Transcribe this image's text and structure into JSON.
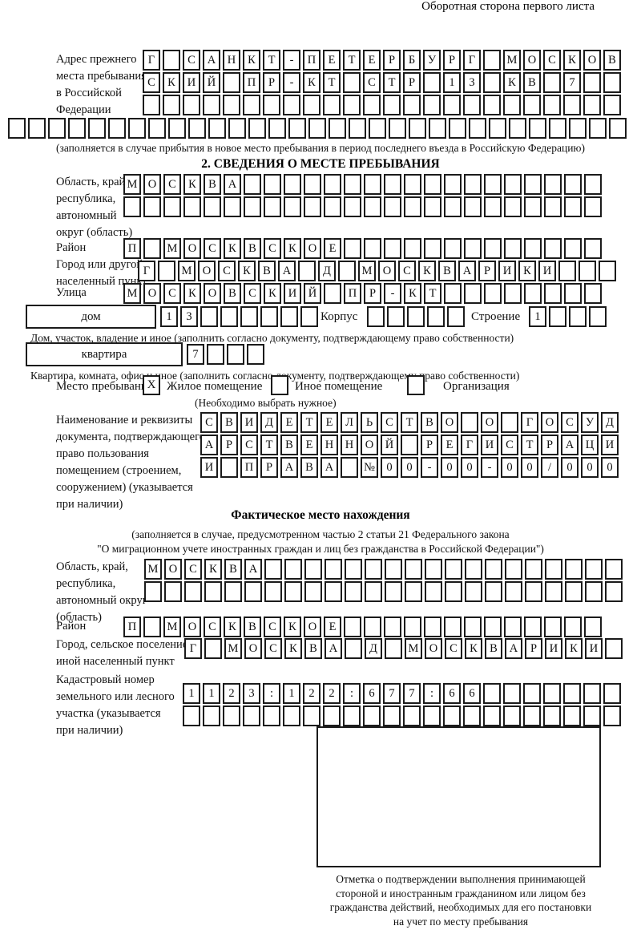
{
  "header": {
    "note": "Оборотная сторона первого листа"
  },
  "prev_address": {
    "label": "Адрес прежнего\nместа пребывания\nв Российской\nФедерации",
    "rows": [
      {
        "chars": "Г САНКТ-ПЕТЕРБУРГ МОСКОВ",
        "len": 24
      },
      {
        "chars": "СКИЙ ПР-КТ СТР 13 КВ 7",
        "len": 24
      },
      {
        "chars": "",
        "len": 24
      },
      {
        "chars": "",
        "len": 31
      }
    ],
    "note": "(заполняется в случае прибытия в новое место пребывания в период последнего въезда в Российскую Федерацию)"
  },
  "place": {
    "title": "2. СВЕДЕНИЯ О МЕСТЕ ПРЕБЫВАНИЯ",
    "region": {
      "label": "Область, край,\nреспублика,\nавтономный\nокруг (область)",
      "rows": [
        {
          "chars": "МОСКВА",
          "len": 24
        },
        {
          "chars": "",
          "len": 24
        }
      ]
    },
    "district": {
      "label": "Район",
      "row": {
        "chars": "П МОСКВСКОЕ",
        "len": 24
      }
    },
    "city": {
      "label": "Город или другой\nнаселенный пункт",
      "row": {
        "chars": "Г МОСКВА Д МОСКВАРИКИ",
        "len": 24
      }
    },
    "street": {
      "label": "Улица",
      "row": {
        "chars": "МОСКОВСКИЙ ПР-КТ",
        "len": 24
      }
    },
    "house": {
      "box_label": "дом",
      "num": {
        "chars": "13",
        "len": 8
      },
      "korpus_label": "Корпус",
      "korpus": {
        "chars": "",
        "len": 5
      },
      "stroenie_label": "Строение",
      "stroenie": {
        "chars": "1",
        "len": 4
      },
      "note": "Дом, участок, владение и иное (заполнить согласно документу, подтверждающему право собственности)"
    },
    "apartment": {
      "box_label": "квартира",
      "num": {
        "chars": "7",
        "len": 4
      },
      "note": "Квартира, комната, офис и иное (заполнить согласно документу, подтверждающему право собственности)"
    },
    "stay_type": {
      "label": "Место пребывания:",
      "options": [
        {
          "mark": "X",
          "label": "Жилое помещение"
        },
        {
          "mark": "",
          "label": "Иное помещение"
        },
        {
          "mark": "",
          "label": "Организация"
        }
      ],
      "note": "(Необходимо выбрать нужное)"
    },
    "doc": {
      "label": "Наименование и реквизиты\nдокумента, подтверждающего\nправо пользования\nпомещением (строением,\nсооружением) (указывается\nпри наличии)",
      "rows": [
        {
          "chars": "СВИДЕТЕЛЬСТВО О ГОСУД",
          "len": 21
        },
        {
          "chars": "АРСТВЕННОЙ РЕГИСТРАЦИ",
          "len": 21
        },
        {
          "chars": "И ПРАВА №00-00-00/000",
          "len": 21
        }
      ]
    }
  },
  "factual": {
    "title": "Фактическое место нахождения",
    "note1": "(заполняется в случае, предусмотренном частью 2 статьи 21 Федерального закона",
    "note2": "\"О миграционном учете иностранных граждан и лиц без гражданства в Российской Федерации\")",
    "region": {
      "label": "Область, край,\nреспублика,\nавтономный округ\n(область)",
      "rows": [
        {
          "chars": "МОСКВА",
          "len": 24
        },
        {
          "chars": "",
          "len": 24
        }
      ]
    },
    "district": {
      "label": "Район",
      "row": {
        "chars": "П МОСКВСКОЕ",
        "len": 24
      }
    },
    "city": {
      "label": "Город, сельское поселение,\nиной населенный пункт",
      "row": {
        "chars": "Г МОСКВА Д МОСКВАРИКИ",
        "len": 22
      }
    },
    "cadastre": {
      "label": "Кадастровый номер\nземельного или лесного\nучастка (указывается\nпри наличии)",
      "rows": [
        {
          "chars": "1123:122:677:66",
          "len": 22
        },
        {
          "chars": "",
          "len": 22
        }
      ]
    },
    "stamp_note": "Отметка о подтверждении выполнения принимающей\nстороной и иностранным гражданином или лицом без\nгражданства действий, необходимых для его постановки\nна учет по месту пребывания"
  }
}
